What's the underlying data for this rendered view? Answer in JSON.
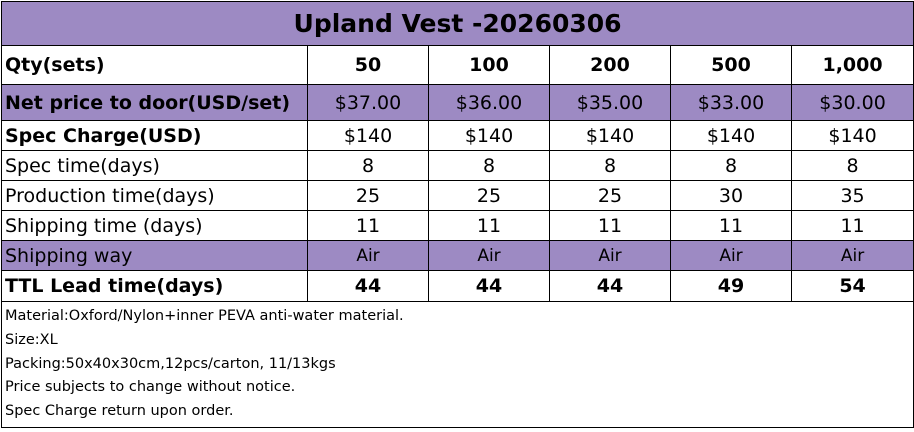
{
  "table": {
    "title": "Upland Vest -20260306",
    "rows": [
      {
        "label": "Qty(sets)",
        "cells": [
          "50",
          "100",
          "200",
          "500",
          "1,000"
        ]
      },
      {
        "label": "Net price to door(USD/set)",
        "cells": [
          "$37.00",
          "$36.00",
          "$35.00",
          "$33.00",
          "$30.00"
        ]
      },
      {
        "label": "Spec Charge(USD)",
        "cells": [
          "$140",
          "$140",
          "$140",
          "$140",
          "$140"
        ]
      },
      {
        "label": "Spec time(days)",
        "cells": [
          "8",
          "8",
          "8",
          "8",
          "8"
        ]
      },
      {
        "label": "Production time(days)",
        "cells": [
          "25",
          "25",
          "25",
          "30",
          "35"
        ]
      },
      {
        "label": "Shipping time (days)",
        "cells": [
          "11",
          "11",
          "11",
          "11",
          "11"
        ]
      },
      {
        "label": "Shipping way",
        "cells": [
          "Air",
          "Air",
          "Air",
          "Air",
          "Air"
        ]
      },
      {
        "label": "TTL Lead time(days)",
        "cells": [
          "44",
          "44",
          "44",
          "49",
          "54"
        ]
      }
    ],
    "notes": [
      "Material:Oxford/Nylon+inner PEVA anti-water material.",
      "Size:XL",
      "Packing:50x40x30cm,12pcs/carton, 11/13kgs",
      "Price subjects to change without notice.",
      "Spec Charge return upon order."
    ]
  }
}
